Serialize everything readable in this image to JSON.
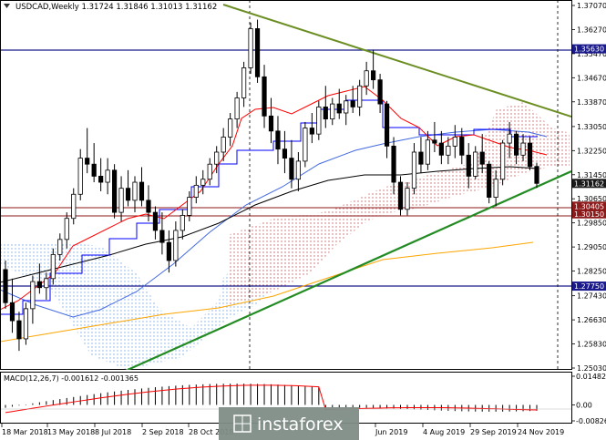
{
  "header": {
    "symbol_line": "USDCAD,Weekly  1.31724 1.31846 1.31013 1.31162"
  },
  "price_axis": {
    "ticks": [
      "1.37070",
      "1.36270",
      "1.35470",
      "1.34670",
      "1.33870",
      "1.33050",
      "1.32250",
      "1.31450",
      "1.30650",
      "1.29850",
      "1.29050",
      "1.28250",
      "1.27430",
      "1.26630",
      "1.25830",
      "1.25030"
    ],
    "tick_values": [
      1.3707,
      1.3627,
      1.3547,
      1.3467,
      1.3387,
      1.3305,
      1.3225,
      1.3145,
      1.3065,
      1.2985,
      1.2905,
      1.2825,
      1.2743,
      1.2663,
      1.2583,
      1.2503
    ],
    "tags": [
      {
        "text": "1.35630",
        "value": 1.3563,
        "color": "#1a1a8c"
      },
      {
        "text": "1.31162",
        "value": 1.31162,
        "color": "#1a1a1a"
      },
      {
        "text": "1.30405",
        "value": 1.30405,
        "color": "#8c1a1a"
      },
      {
        "text": "1.30150",
        "value": 1.3015,
        "color": "#8c1a1a"
      },
      {
        "text": "1.27750",
        "value": 1.2775,
        "color": "#1a1a8c"
      }
    ]
  },
  "macd": {
    "label": "MACD(12,26,7) -0.001612 -0.001365",
    "ticks": [
      "0.014823",
      "0.00",
      "-0.008260"
    ],
    "tick_values": [
      0.014823,
      0,
      -0.00826
    ]
  },
  "time_axis": {
    "labels": [
      "18 Mar 2018",
      "13 May 2018",
      "8 Jul 2018",
      "2 Sep 2018",
      "28 Oct 2018",
      "Jun 2019",
      "4 Aug 2019",
      "29 Sep 2019",
      "24 Nov 2019"
    ]
  },
  "watermark": {
    "text": "instaforex"
  },
  "colors": {
    "bull": "#ffffff",
    "bear": "#000000",
    "tenkan": "#ff0000",
    "kijun": "#0000ff",
    "sma_fast": "#4169e1",
    "sma_slow": "#000000",
    "sma_long": "#ffa500",
    "uptrend": "#228b22",
    "downtrend": "#6b8e23",
    "level_blue": "#1a1a8c",
    "level_red": "#8c1a1a"
  },
  "chart_data": {
    "type": "candlestick",
    "symbol": "USDCAD",
    "timeframe": "Weekly",
    "last_bar": {
      "open": 1.31724,
      "high": 1.31846,
      "low": 1.31013,
      "close": 1.31162
    },
    "horizontal_levels": [
      1.3563,
      1.30405,
      1.3015,
      1.2775
    ],
    "candles": [
      [
        1.283,
        1.286,
        1.27,
        1.272
      ],
      [
        1.272,
        1.28,
        1.262,
        1.266
      ],
      [
        1.266,
        1.269,
        1.256,
        1.26
      ],
      [
        1.26,
        1.272,
        1.258,
        1.27
      ],
      [
        1.27,
        1.281,
        1.265,
        1.279
      ],
      [
        1.279,
        1.285,
        1.275,
        1.277
      ],
      [
        1.277,
        1.282,
        1.273,
        1.28
      ],
      [
        1.28,
        1.29,
        1.278,
        1.288
      ],
      [
        1.288,
        1.295,
        1.286,
        1.293
      ],
      [
        1.293,
        1.302,
        1.29,
        1.3
      ],
      [
        1.3,
        1.31,
        1.298,
        1.308
      ],
      [
        1.308,
        1.323,
        1.306,
        1.32
      ],
      [
        1.32,
        1.33,
        1.315,
        1.318
      ],
      [
        1.318,
        1.325,
        1.312,
        1.314
      ],
      [
        1.314,
        1.32,
        1.309,
        1.312
      ],
      [
        1.312,
        1.32,
        1.308,
        1.316
      ],
      [
        1.316,
        1.318,
        1.3,
        1.302
      ],
      [
        1.302,
        1.314,
        1.299,
        1.31
      ],
      [
        1.31,
        1.316,
        1.304,
        1.306
      ],
      [
        1.306,
        1.314,
        1.302,
        1.312
      ],
      [
        1.312,
        1.317,
        1.304,
        1.306
      ],
      [
        1.306,
        1.311,
        1.299,
        1.302
      ],
      [
        1.302,
        1.304,
        1.293,
        1.296
      ],
      [
        1.296,
        1.302,
        1.288,
        1.292
      ],
      [
        1.292,
        1.296,
        1.282,
        1.286
      ],
      [
        1.286,
        1.299,
        1.284,
        1.296
      ],
      [
        1.296,
        1.303,
        1.293,
        1.301
      ],
      [
        1.301,
        1.309,
        1.299,
        1.307
      ],
      [
        1.307,
        1.314,
        1.305,
        1.311
      ],
      [
        1.311,
        1.316,
        1.308,
        1.313
      ],
      [
        1.313,
        1.32,
        1.311,
        1.318
      ],
      [
        1.318,
        1.324,
        1.315,
        1.322
      ],
      [
        1.322,
        1.33,
        1.319,
        1.327
      ],
      [
        1.327,
        1.335,
        1.324,
        1.333
      ],
      [
        1.333,
        1.342,
        1.33,
        1.34
      ],
      [
        1.34,
        1.352,
        1.337,
        1.35
      ],
      [
        1.35,
        1.365,
        1.348,
        1.363
      ],
      [
        1.363,
        1.366,
        1.345,
        1.347
      ],
      [
        1.347,
        1.351,
        1.33,
        1.334
      ],
      [
        1.334,
        1.34,
        1.325,
        1.329
      ],
      [
        1.329,
        1.334,
        1.318,
        1.323
      ],
      [
        1.323,
        1.329,
        1.315,
        1.32
      ],
      [
        1.32,
        1.326,
        1.31,
        1.313
      ],
      [
        1.313,
        1.322,
        1.309,
        1.319
      ],
      [
        1.319,
        1.332,
        1.317,
        1.33
      ],
      [
        1.33,
        1.335,
        1.325,
        1.328
      ],
      [
        1.328,
        1.339,
        1.326,
        1.337
      ],
      [
        1.337,
        1.344,
        1.33,
        1.333
      ],
      [
        1.333,
        1.34,
        1.331,
        1.338
      ],
      [
        1.338,
        1.343,
        1.333,
        1.335
      ],
      [
        1.335,
        1.341,
        1.331,
        1.339
      ],
      [
        1.339,
        1.344,
        1.335,
        1.337
      ],
      [
        1.337,
        1.346,
        1.334,
        1.344
      ],
      [
        1.344,
        1.352,
        1.341,
        1.349
      ],
      [
        1.349,
        1.356,
        1.343,
        1.346
      ],
      [
        1.346,
        1.348,
        1.335,
        1.338
      ],
      [
        1.338,
        1.339,
        1.32,
        1.324
      ],
      [
        1.324,
        1.327,
        1.308,
        1.312
      ],
      [
        1.312,
        1.314,
        1.301,
        1.303
      ],
      [
        1.303,
        1.312,
        1.301,
        1.31
      ],
      [
        1.31,
        1.325,
        1.308,
        1.322
      ],
      [
        1.322,
        1.327,
        1.315,
        1.318
      ],
      [
        1.318,
        1.329,
        1.316,
        1.326
      ],
      [
        1.326,
        1.332,
        1.322,
        1.325
      ],
      [
        1.325,
        1.329,
        1.318,
        1.321
      ],
      [
        1.321,
        1.327,
        1.318,
        1.324
      ],
      [
        1.324,
        1.331,
        1.32,
        1.327
      ],
      [
        1.327,
        1.33,
        1.318,
        1.321
      ],
      [
        1.321,
        1.325,
        1.31,
        1.314
      ],
      [
        1.314,
        1.324,
        1.313,
        1.322
      ],
      [
        1.322,
        1.328,
        1.315,
        1.318
      ],
      [
        1.318,
        1.319,
        1.305,
        1.307
      ],
      [
        1.307,
        1.316,
        1.304,
        1.313
      ],
      [
        1.313,
        1.326,
        1.311,
        1.325
      ],
      [
        1.325,
        1.332,
        1.32,
        1.328
      ],
      [
        1.328,
        1.329,
        1.318,
        1.321
      ],
      [
        1.321,
        1.328,
        1.319,
        1.325
      ],
      [
        1.325,
        1.327,
        1.316,
        1.3172
      ],
      [
        1.31724,
        1.31846,
        1.31013,
        1.31162
      ]
    ],
    "macd_histogram_range": [
      -0.00826,
      0.014823
    ]
  }
}
